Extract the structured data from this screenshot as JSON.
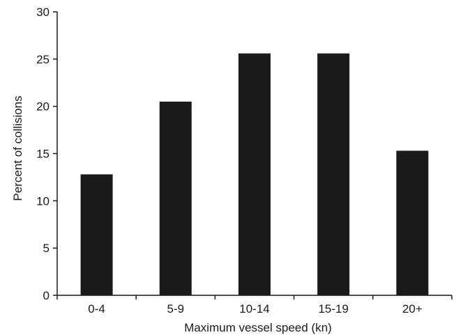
{
  "chart_data": {
    "type": "bar",
    "categories": [
      "0-4",
      "5-9",
      "10-14",
      "15-19",
      "20+"
    ],
    "values": [
      12.8,
      20.5,
      25.6,
      25.6,
      15.3
    ],
    "title": "",
    "xlabel": "Maximum vessel speed (kn)",
    "ylabel": "Percent of collisions",
    "ylim": [
      0,
      30
    ],
    "yticks": [
      0,
      5,
      10,
      15,
      20,
      25,
      30
    ],
    "grid": false,
    "bar_color": "#1a1a1a",
    "axis_color": "#1a1a1a"
  }
}
